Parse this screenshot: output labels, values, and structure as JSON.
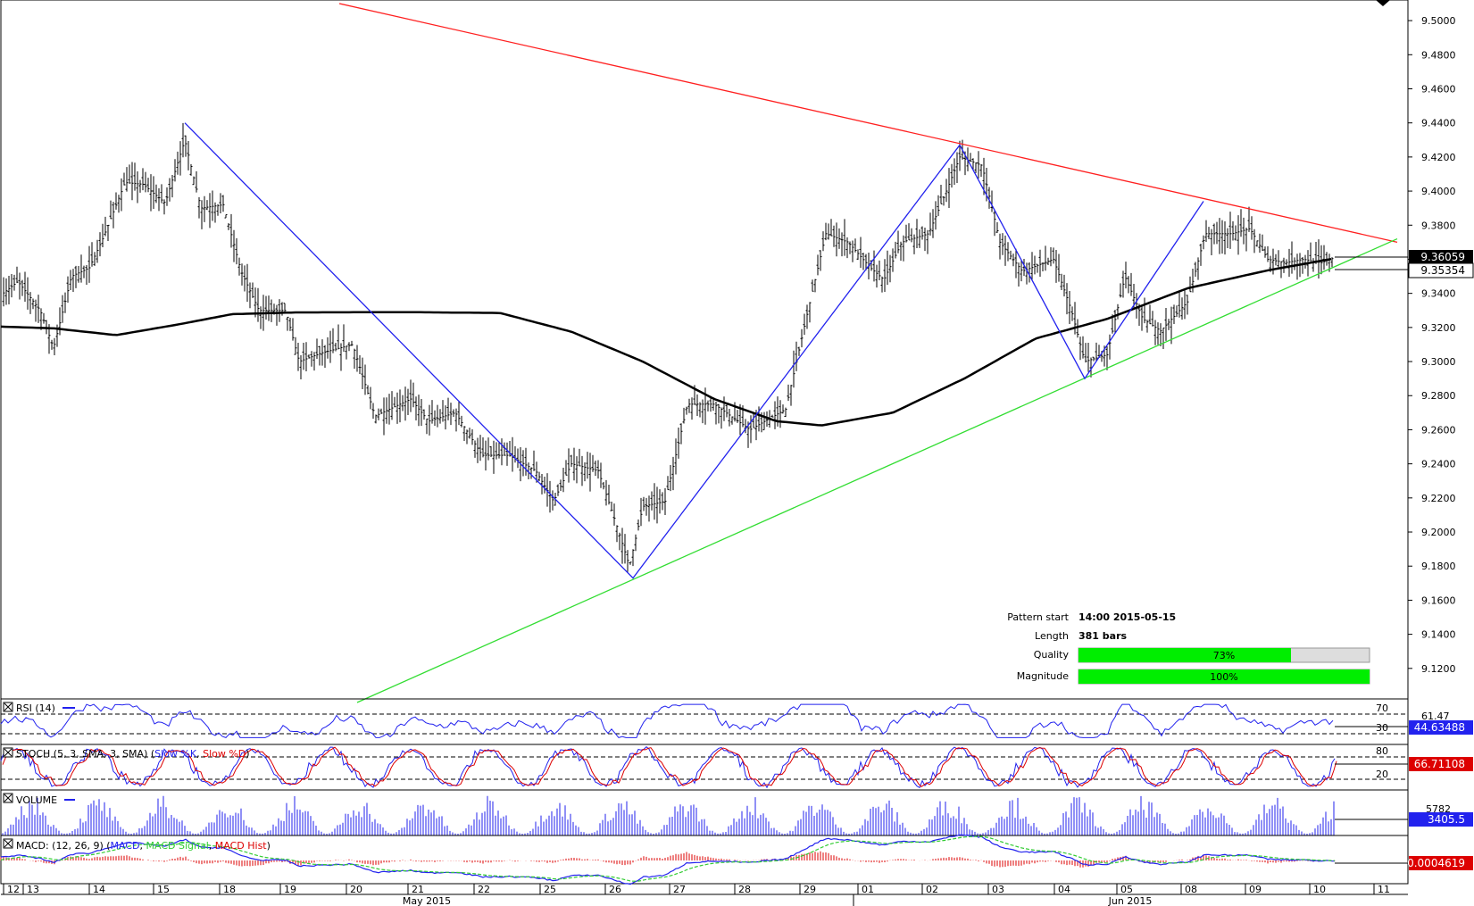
{
  "chart_data": {
    "type": "candlestick",
    "symbol_price": {
      "current_price_label": "9.36059",
      "ma_price_label": "9.35354",
      "ylim": [
        9.1,
        9.51
      ],
      "y_ticks": [
        "9.5000",
        "9.4800",
        "9.4600",
        "9.4400",
        "9.4200",
        "9.4000",
        "9.3800",
        "9.3600",
        "9.3400",
        "9.3200",
        "9.3000",
        "9.2800",
        "9.2600",
        "9.2400",
        "9.2200",
        "9.2000",
        "9.1800",
        "9.1600",
        "9.1400",
        "9.1200"
      ],
      "swing_points": [
        {
          "date": "2015-05-15",
          "price": 9.44
        },
        {
          "date": "2015-05-26",
          "price": 9.173
        },
        {
          "date": "2015-06-02",
          "price": 9.427
        },
        {
          "date": "2015-06-04",
          "price": 9.29
        },
        {
          "date": "2015-06-08",
          "price": 9.394
        }
      ],
      "resistance_line": {
        "start": {
          "date": "2015-05-14",
          "price": 9.51
        },
        "end": {
          "date": "2015-06-10",
          "price": 9.37
        },
        "color": "#ff2020"
      },
      "support_line": {
        "start": {
          "date": "2015-05-20",
          "price": 9.1
        },
        "end": {
          "date": "2015-06-10",
          "price": 9.372
        },
        "color": "#33dd33"
      },
      "zigzag_color": "#2222ee",
      "moving_average_color": "#000000"
    },
    "x_axis": {
      "days": [
        "12",
        "13",
        "14",
        "15",
        "18",
        "19",
        "20",
        "21",
        "22",
        "25",
        "26",
        "27",
        "28",
        "29",
        "01",
        "02",
        "03",
        "04",
        "05",
        "08",
        "09",
        "10",
        "11"
      ],
      "months": [
        "May 2015",
        "Jun 2015"
      ]
    },
    "pattern_info": {
      "pattern_start_label": "Pattern start",
      "pattern_start_value": "14:00 2015-05-15",
      "length_label": "Length",
      "length_value": "381 bars",
      "quality_label": "Quality",
      "quality_value": "73%",
      "quality_fraction": 0.73,
      "magnitude_label": "Magnitude",
      "magnitude_value": "100%",
      "magnitude_fraction": 1.0
    },
    "indicators": {
      "rsi": {
        "label": "RSI (14)",
        "levels": [
          "70",
          "30"
        ],
        "value_label": "44.63488",
        "side_value": "61.47",
        "line_color": "#2222ee"
      },
      "stoch": {
        "label_prefix": "STOCH (5, 3, SMA, 3, SMA) (",
        "label_k": "Slow %K",
        "label_sep": ", ",
        "label_d": "Slow %D",
        "label_suffix": ")",
        "levels": [
          "80",
          "20"
        ],
        "value_label": "66.71108",
        "k_color": "#2222ee",
        "d_color": "#dd0000"
      },
      "volume": {
        "label": "VOLUME",
        "value_label": "3405.5",
        "side_value": "5782",
        "bar_color": "#2222ee"
      },
      "macd": {
        "label_prefix": "MACD: (12, 26, 9) (",
        "label_macd": "MACD",
        "label_sep1": ", ",
        "label_signal": "MACD Signal",
        "label_sep2": ", ",
        "label_hist": "MACD Hist",
        "label_suffix": ")",
        "value_label": "0.0004619",
        "macd_color": "#2222ee",
        "signal_color": "#33cc33",
        "hist_color": "#dd0000"
      }
    }
  }
}
